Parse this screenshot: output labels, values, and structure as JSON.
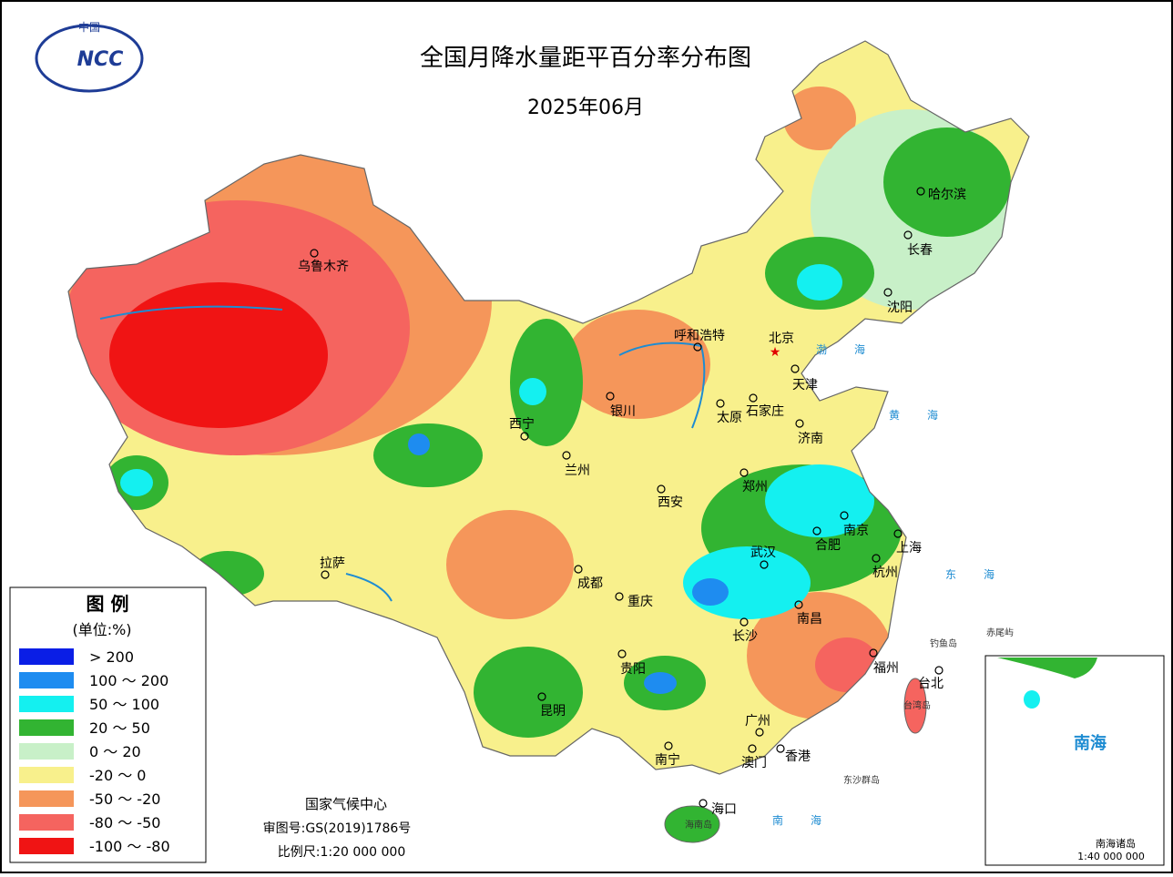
{
  "header": {
    "title": "全国月降水量距平百分率分布图",
    "subtitle": "2025年06月"
  },
  "logo": {
    "top": "中国",
    "text": "NCC"
  },
  "legend": {
    "title": "图 例",
    "unit": "(单位:%)",
    "items": [
      {
        "label": "> 200",
        "color": "#0a1ee6"
      },
      {
        "label": "100 ～ 200",
        "color": "#1e8cf0"
      },
      {
        "label": "50 ～ 100",
        "color": "#14f0f0"
      },
      {
        "label": "20 ～ 50",
        "color": "#32b432"
      },
      {
        "label": "0 ～ 20",
        "color": "#c8f0c8"
      },
      {
        "label": "-20 ～ 0",
        "color": "#f8f08c"
      },
      {
        "label": "-50 ～ -20",
        "color": "#f5965a"
      },
      {
        "label": "-80 ～ -50",
        "color": "#f5645f"
      },
      {
        "label": "-100 ～ -80",
        "color": "#f01414"
      }
    ]
  },
  "cities": [
    "乌鲁木齐",
    "西宁",
    "兰州",
    "银川",
    "呼和浩特",
    "北京",
    "天津",
    "石家庄",
    "太原",
    "济南",
    "郑州",
    "西安",
    "南京",
    "合肥",
    "上海",
    "杭州",
    "武汉",
    "南昌",
    "长沙",
    "福州",
    "台北",
    "贵阳",
    "重庆",
    "成都",
    "拉萨",
    "昆明",
    "南宁",
    "广州",
    "澳门",
    "香港",
    "海口",
    "哈尔滨",
    "长春",
    "沈阳"
  ],
  "seas": [
    "渤海",
    "黄海",
    "东海",
    "南海"
  ],
  "islands": [
    "台湾岛",
    "海南岛",
    "钓鱼岛",
    "赤尾屿",
    "东沙群岛"
  ],
  "footer": {
    "agency": "国家气候中心",
    "approval": "审图号:GS(2019)1786号",
    "scale": "比例尺:1:20 000 000"
  },
  "inset": {
    "sea": "南海",
    "islands": "南海诸岛",
    "scale": "1:40 000 000"
  }
}
